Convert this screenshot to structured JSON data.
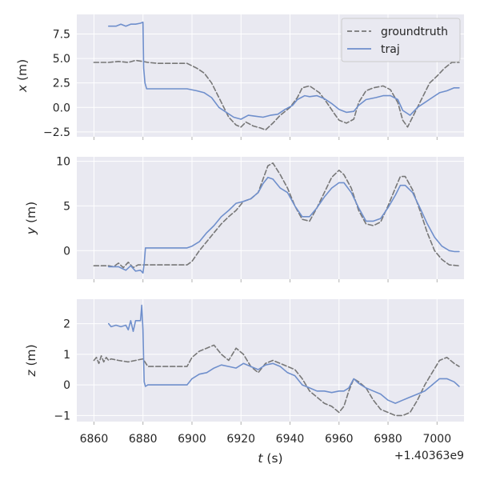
{
  "chart_data": [
    {
      "type": "line",
      "ylabel_var": "x",
      "ylabel_unit": " (m)",
      "xlim": [
        6853,
        7011
      ],
      "ylim": [
        -3.0,
        9.5
      ],
      "yticks": [
        -2.5,
        0.0,
        2.5,
        5.0,
        7.5
      ],
      "ytick_labels": [
        "−2.5",
        "0.0",
        "2.5",
        "5.0",
        "7.5"
      ],
      "legend": {
        "position": "top-right",
        "entries": [
          "groundtruth",
          "traj"
        ]
      },
      "series": [
        {
          "name": "groundtruth",
          "style": "dashed",
          "color": "#777777",
          "x": [
            6860,
            6866,
            6870,
            6874,
            6877,
            6880,
            6882,
            6886,
            6892,
            6898,
            6902,
            6905,
            6908,
            6911,
            6913,
            6915,
            6918,
            6920,
            6922,
            6925,
            6928,
            6930,
            6933,
            6936,
            6940,
            6943,
            6945,
            6948,
            6952,
            6955,
            6958,
            6960,
            6963,
            6966,
            6968,
            6971,
            6974,
            6978,
            6981,
            6984,
            6986,
            6988,
            6991,
            6994,
            6997,
            7000,
            7003,
            7006,
            7009
          ],
          "y": [
            4.6,
            4.6,
            4.7,
            4.6,
            4.8,
            4.7,
            4.6,
            4.5,
            4.5,
            4.5,
            4.0,
            3.5,
            2.5,
            1.0,
            0.0,
            -1.0,
            -1.8,
            -2.0,
            -1.5,
            -1.9,
            -2.1,
            -2.3,
            -1.6,
            -0.8,
            0.0,
            1.0,
            2.0,
            2.2,
            1.5,
            0.5,
            -0.6,
            -1.3,
            -1.6,
            -1.2,
            0.5,
            1.7,
            2.0,
            2.2,
            1.8,
            0.5,
            -1.3,
            -2.0,
            -0.5,
            1.0,
            2.5,
            3.2,
            4.0,
            4.6,
            4.6
          ]
        },
        {
          "name": "traj",
          "style": "solid",
          "color": "#6f8fcc",
          "x": [
            6866,
            6869,
            6871,
            6873,
            6875,
            6877,
            6879,
            6880,
            6880.3,
            6880.8,
            6881.5,
            6882,
            6886,
            6892,
            6898,
            6902,
            6905,
            6908,
            6911,
            6914,
            6917,
            6920,
            6923,
            6926,
            6929,
            6932,
            6935,
            6938,
            6941,
            6943,
            6946,
            6948,
            6951,
            6954,
            6957,
            6960,
            6963,
            6966,
            6968,
            6971,
            6975,
            6978,
            6981,
            6984,
            6986,
            6989,
            6992,
            6995,
            6998,
            7001,
            7004,
            7007,
            7009
          ],
          "y": [
            8.3,
            8.3,
            8.5,
            8.3,
            8.5,
            8.5,
            8.6,
            8.7,
            4.0,
            2.5,
            1.9,
            1.9,
            1.9,
            1.9,
            1.9,
            1.7,
            1.5,
            1.0,
            0.0,
            -0.5,
            -1.0,
            -1.2,
            -0.8,
            -0.9,
            -1.0,
            -0.8,
            -0.7,
            -0.2,
            0.2,
            0.8,
            1.2,
            1.1,
            1.2,
            0.9,
            0.4,
            -0.2,
            -0.5,
            -0.4,
            0.2,
            0.8,
            1.0,
            1.2,
            1.2,
            0.8,
            -0.3,
            -0.8,
            0.0,
            0.5,
            1.0,
            1.5,
            1.7,
            2.0,
            2.0
          ]
        }
      ]
    },
    {
      "type": "line",
      "ylabel_var": "y",
      "ylabel_unit": " (m)",
      "xlim": [
        6853,
        7011
      ],
      "ylim": [
        -3.2,
        10.5
      ],
      "yticks": [
        0,
        5,
        10
      ],
      "ytick_labels": [
        "0",
        "5",
        "10"
      ],
      "series": [
        {
          "name": "groundtruth",
          "style": "dashed",
          "color": "#777777",
          "x": [
            6860,
            6866,
            6868,
            6870,
            6872,
            6874,
            6876,
            6878,
            6880,
            6882,
            6886,
            6892,
            6898,
            6900,
            6903,
            6906,
            6909,
            6912,
            6915,
            6918,
            6921,
            6924,
            6927,
            6929,
            6931,
            6933,
            6936,
            6939,
            6942,
            6945,
            6948,
            6951,
            6954,
            6957,
            6960,
            6962,
            6965,
            6968,
            6971,
            6974,
            6977,
            6980,
            6983,
            6985,
            6987,
            6990,
            6993,
            6996,
            6999,
            7002,
            7005,
            7009
          ],
          "y": [
            -1.7,
            -1.7,
            -1.8,
            -1.4,
            -1.9,
            -1.3,
            -1.9,
            -1.6,
            -1.6,
            -1.6,
            -1.6,
            -1.6,
            -1.6,
            -1.2,
            0.0,
            1.0,
            2.0,
            3.0,
            3.8,
            4.5,
            5.5,
            5.8,
            6.5,
            8.0,
            9.5,
            9.8,
            8.5,
            7.0,
            5.0,
            3.5,
            3.3,
            4.8,
            6.5,
            8.2,
            9.0,
            8.5,
            7.0,
            4.5,
            3.0,
            2.8,
            3.2,
            5.0,
            7.0,
            8.3,
            8.3,
            6.8,
            4.5,
            2.0,
            0.0,
            -1.0,
            -1.6,
            -1.7
          ]
        },
        {
          "name": "traj",
          "style": "solid",
          "color": "#6f8fcc",
          "x": [
            6866,
            6870,
            6873,
            6875,
            6877,
            6879,
            6880,
            6880.5,
            6881,
            6882,
            6886,
            6892,
            6898,
            6900,
            6903,
            6906,
            6909,
            6912,
            6915,
            6918,
            6921,
            6924,
            6927,
            6929,
            6931,
            6933,
            6936,
            6939,
            6942,
            6945,
            6948,
            6951,
            6954,
            6957,
            6960,
            6962,
            6965,
            6968,
            6971,
            6974,
            6977,
            6980,
            6983,
            6985,
            6987,
            6990,
            6993,
            6996,
            6999,
            7002,
            7005,
            7007,
            7009
          ],
          "y": [
            -1.8,
            -1.8,
            -2.2,
            -1.7,
            -2.3,
            -2.2,
            -2.5,
            -1.5,
            0.3,
            0.3,
            0.3,
            0.3,
            0.3,
            0.5,
            1.0,
            2.0,
            2.8,
            3.8,
            4.5,
            5.3,
            5.5,
            5.8,
            6.5,
            7.5,
            8.2,
            8.0,
            7.0,
            6.5,
            5.0,
            3.8,
            3.8,
            4.8,
            6.0,
            7.0,
            7.6,
            7.6,
            6.5,
            4.8,
            3.3,
            3.3,
            3.6,
            4.8,
            6.2,
            7.3,
            7.3,
            6.5,
            4.8,
            3.0,
            1.5,
            0.5,
            0.0,
            -0.1,
            -0.1
          ]
        }
      ]
    },
    {
      "type": "line",
      "ylabel_var": "z",
      "ylabel_unit": " (m)",
      "xlim": [
        6853,
        7011
      ],
      "ylim": [
        -1.2,
        2.8
      ],
      "yticks": [
        -1,
        0,
        1,
        2
      ],
      "ytick_labels": [
        "−1",
        "0",
        "1",
        "2"
      ],
      "series": [
        {
          "name": "groundtruth",
          "style": "dashed",
          "color": "#777777",
          "x": [
            6860,
            6861,
            6862,
            6863,
            6864,
            6865,
            6866,
            6867,
            6870,
            6874,
            6877,
            6880,
            6882,
            6886,
            6892,
            6898,
            6900,
            6903,
            6906,
            6909,
            6912,
            6915,
            6918,
            6921,
            6924,
            6927,
            6930,
            6933,
            6936,
            6939,
            6942,
            6945,
            6948,
            6951,
            6954,
            6957,
            6960,
            6962,
            6964,
            6966,
            6968,
            6971,
            6974,
            6977,
            6980,
            6983,
            6986,
            6989,
            6992,
            6995,
            6998,
            7001,
            7004,
            7007,
            7009
          ],
          "y": [
            0.8,
            0.9,
            0.7,
            0.95,
            0.75,
            0.9,
            0.8,
            0.85,
            0.8,
            0.75,
            0.8,
            0.85,
            0.6,
            0.6,
            0.6,
            0.6,
            0.9,
            1.1,
            1.2,
            1.3,
            1.0,
            0.8,
            1.2,
            1.0,
            0.6,
            0.4,
            0.7,
            0.8,
            0.7,
            0.6,
            0.5,
            0.2,
            -0.2,
            -0.4,
            -0.6,
            -0.7,
            -0.9,
            -0.7,
            -0.2,
            0.2,
            0.1,
            -0.1,
            -0.5,
            -0.8,
            -0.9,
            -1.0,
            -1.0,
            -0.9,
            -0.5,
            0.0,
            0.4,
            0.8,
            0.9,
            0.7,
            0.6
          ]
        },
        {
          "name": "traj",
          "style": "solid",
          "color": "#6f8fcc",
          "x": [
            6866,
            6867,
            6869,
            6871,
            6873,
            6874,
            6875,
            6876,
            6877,
            6879,
            6879.5,
            6880,
            6880.5,
            6881,
            6882,
            6886,
            6892,
            6898,
            6900,
            6903,
            6906,
            6909,
            6912,
            6915,
            6918,
            6921,
            6924,
            6927,
            6930,
            6933,
            6936,
            6939,
            6942,
            6945,
            6948,
            6951,
            6954,
            6957,
            6960,
            6962,
            6964,
            6966,
            6968,
            6971,
            6974,
            6977,
            6980,
            6983,
            6986,
            6989,
            6992,
            6995,
            6998,
            7001,
            7004,
            7007,
            7009
          ],
          "y": [
            2.0,
            1.9,
            1.95,
            1.9,
            1.95,
            1.8,
            2.1,
            1.75,
            2.1,
            2.1,
            2.6,
            1.8,
            0.1,
            -0.05,
            0.0,
            0.0,
            0.0,
            0.0,
            0.2,
            0.35,
            0.4,
            0.55,
            0.65,
            0.6,
            0.55,
            0.7,
            0.6,
            0.5,
            0.65,
            0.7,
            0.6,
            0.4,
            0.3,
            0.0,
            -0.1,
            -0.2,
            -0.2,
            -0.25,
            -0.2,
            -0.2,
            -0.1,
            0.2,
            0.05,
            -0.1,
            -0.2,
            -0.3,
            -0.5,
            -0.6,
            -0.5,
            -0.4,
            -0.3,
            -0.2,
            0.0,
            0.2,
            0.2,
            0.1,
            -0.05
          ]
        }
      ]
    }
  ],
  "shared_x": {
    "xticks": [
      6860,
      6880,
      6900,
      6920,
      6940,
      6960,
      6980,
      7000
    ],
    "xtick_labels": [
      "6860",
      "6880",
      "6900",
      "6920",
      "6940",
      "6960",
      "6980",
      "7000"
    ],
    "xlabel_var": "t",
    "xlabel_unit": " (s)",
    "offset_text": "+1.40363e9"
  },
  "colors": {
    "axes_bg": "#e9e9f1",
    "grid": "#ffffff",
    "groundtruth": "#777777",
    "traj": "#6f8fcc"
  }
}
